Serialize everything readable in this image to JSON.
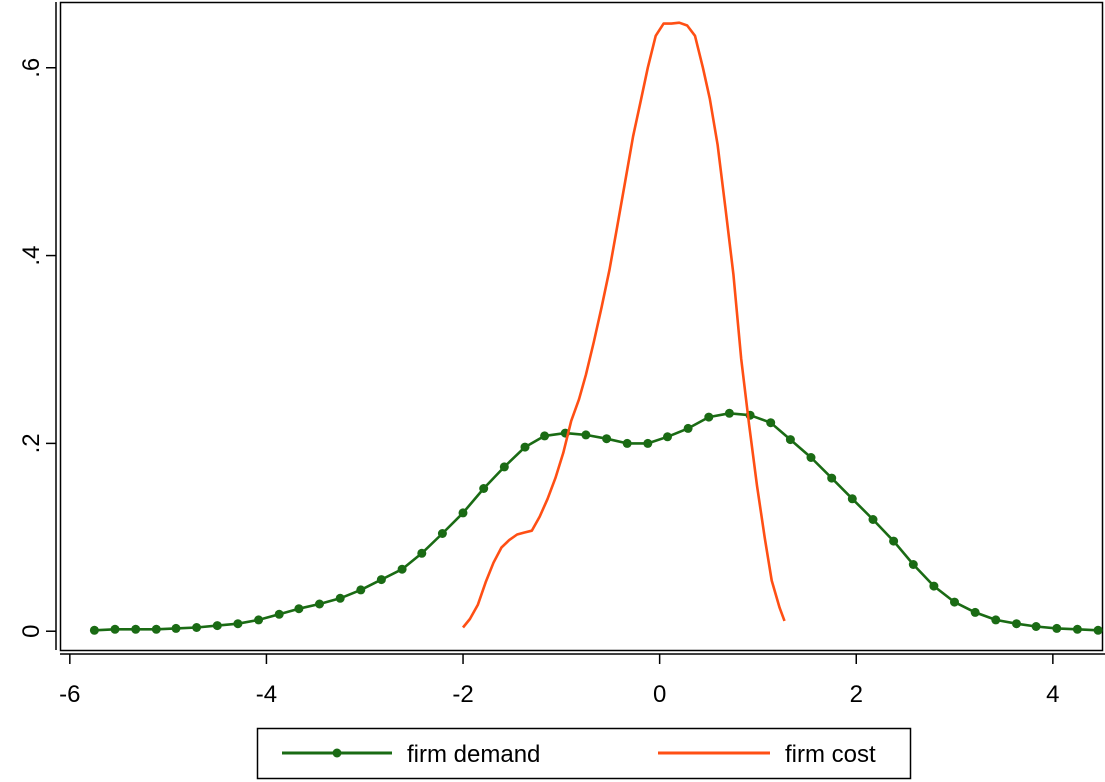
{
  "chart_data": {
    "type": "line",
    "title": "",
    "xlabel": "",
    "ylabel": "",
    "xlim": [
      -6.1,
      4.5
    ],
    "ylim": [
      -0.02,
      0.67
    ],
    "x_ticks": [
      -6,
      -4,
      -2,
      0,
      2,
      4
    ],
    "x_tick_labels": [
      "-6",
      "-4",
      "-2",
      "0",
      "2",
      "4"
    ],
    "y_ticks": [
      0,
      0.2,
      0.4,
      0.6
    ],
    "y_tick_labels": [
      "0",
      ".2",
      ".4",
      ".6"
    ],
    "grid": false,
    "legend_position": "bottom",
    "series": [
      {
        "name": "firm demand",
        "color": "#1a6b14",
        "marker": "circle",
        "x": [
          -5.75,
          -5.54,
          -5.33,
          -5.12,
          -4.92,
          -4.71,
          -4.5,
          -4.29,
          -4.08,
          -3.87,
          -3.67,
          -3.46,
          -3.25,
          -3.04,
          -2.83,
          -2.62,
          -2.42,
          -2.21,
          -2.0,
          -1.79,
          -1.58,
          -1.37,
          -1.17,
          -0.96,
          -0.75,
          -0.54,
          -0.33,
          -0.12,
          0.08,
          0.29,
          0.5,
          0.71,
          0.92,
          1.13,
          1.33,
          1.54,
          1.75,
          1.96,
          2.17,
          2.38,
          2.58,
          2.79,
          3.0,
          3.21,
          3.42,
          3.63,
          3.83,
          4.04,
          4.25,
          4.46
        ],
        "y": [
          0.001,
          0.002,
          0.002,
          0.002,
          0.003,
          0.004,
          0.006,
          0.008,
          0.012,
          0.018,
          0.024,
          0.029,
          0.035,
          0.044,
          0.055,
          0.066,
          0.083,
          0.104,
          0.126,
          0.152,
          0.175,
          0.196,
          0.208,
          0.211,
          0.209,
          0.205,
          0.2,
          0.2,
          0.207,
          0.216,
          0.228,
          0.232,
          0.23,
          0.222,
          0.204,
          0.185,
          0.163,
          0.141,
          0.119,
          0.096,
          0.071,
          0.048,
          0.031,
          0.02,
          0.012,
          0.008,
          0.005,
          0.003,
          0.002,
          0.001
        ]
      },
      {
        "name": "firm cost",
        "color": "#ff4f14",
        "marker": "none",
        "x": [
          -2.0,
          -1.93,
          -1.85,
          -1.77,
          -1.69,
          -1.61,
          -1.53,
          -1.45,
          -1.38,
          -1.3,
          -1.22,
          -1.14,
          -1.06,
          -0.98,
          -0.9,
          -0.82,
          -0.75,
          -0.67,
          -0.59,
          -0.51,
          -0.43,
          -0.35,
          -0.27,
          -0.19,
          -0.12,
          -0.04,
          0.04,
          0.12,
          0.2,
          0.28,
          0.36,
          0.44,
          0.51,
          0.59,
          0.67,
          0.75,
          0.83,
          0.91,
          0.99,
          1.07,
          1.14,
          1.22,
          1.27
        ],
        "y": [
          0.004,
          0.013,
          0.028,
          0.052,
          0.073,
          0.089,
          0.097,
          0.103,
          0.105,
          0.107,
          0.122,
          0.141,
          0.163,
          0.19,
          0.224,
          0.247,
          0.273,
          0.308,
          0.345,
          0.385,
          0.432,
          0.479,
          0.527,
          0.566,
          0.6,
          0.634,
          0.647,
          0.647,
          0.648,
          0.645,
          0.634,
          0.6,
          0.567,
          0.518,
          0.45,
          0.38,
          0.29,
          0.22,
          0.155,
          0.099,
          0.054,
          0.025,
          0.011
        ]
      }
    ]
  }
}
